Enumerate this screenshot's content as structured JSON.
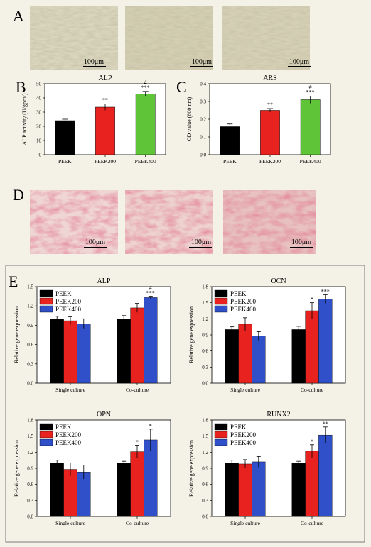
{
  "panel_labels": [
    "A",
    "B",
    "C",
    "D",
    "E"
  ],
  "scale_bar_label": "100μm",
  "chart_data": [
    {
      "id": "B",
      "type": "bar",
      "title": "ALP",
      "ylabel": "ALP activity (U/gprot)",
      "categories": [
        "PEEK",
        "PEEK200",
        "PEEK400"
      ],
      "values": [
        24,
        33.5,
        42.8
      ],
      "errors": [
        1.0,
        2.2,
        1.8
      ],
      "colors": [
        "#000000",
        "#e8231f",
        "#5fc437"
      ],
      "annotations": [
        "",
        "**",
        "#\n***"
      ],
      "ylim": [
        0,
        50
      ],
      "yticks": [
        "0",
        "10",
        "20",
        "30",
        "40",
        "50"
      ]
    },
    {
      "id": "C",
      "type": "bar",
      "title": "ARS",
      "ylabel": "OD value (600 nm)",
      "categories": [
        "PEEK",
        "PEEK200",
        "PEEK400"
      ],
      "values": [
        0.158,
        0.25,
        0.31
      ],
      "errors": [
        0.015,
        0.01,
        0.02
      ],
      "colors": [
        "#000000",
        "#e8231f",
        "#5fc437"
      ],
      "annotations": [
        "",
        "**",
        "#\n***"
      ],
      "ylim": [
        0,
        0.4
      ],
      "yticks": [
        "0.0",
        "0.1",
        "0.2",
        "0.3",
        "0.4"
      ]
    },
    {
      "id": "E1",
      "type": "bar",
      "title": "ALP",
      "ylabel": "Relative gene expression",
      "categories": [
        "Single culture",
        "Co-culture"
      ],
      "series": [
        {
          "name": "PEEK",
          "values": [
            1.0,
            1.0
          ],
          "errors": [
            0.04,
            0.05
          ],
          "color": "#000000"
        },
        {
          "name": "PEEK200",
          "values": [
            0.97,
            1.17
          ],
          "errors": [
            0.06,
            0.07
          ],
          "color": "#e8231f"
        },
        {
          "name": "PEEK400",
          "values": [
            0.92,
            1.33
          ],
          "errors": [
            0.08,
            0.02
          ],
          "color": "#2f50c8"
        }
      ],
      "annotations": [
        [
          "",
          "",
          ""
        ],
        [
          "",
          "",
          "#\n***"
        ]
      ],
      "ylim": [
        0.0,
        1.5
      ],
      "yticks": [
        "0.0",
        "0.3",
        "0.6",
        "0.9",
        "1.2",
        "1.5"
      ],
      "legend": "top-left"
    },
    {
      "id": "E2",
      "type": "bar",
      "title": "OCN",
      "ylabel": "Relative gene expression",
      "categories": [
        "Single culture",
        "Co-culture"
      ],
      "series": [
        {
          "name": "PEEK",
          "values": [
            1.0,
            1.0
          ],
          "errors": [
            0.05,
            0.06
          ],
          "color": "#000000"
        },
        {
          "name": "PEEK200",
          "values": [
            1.1,
            1.35
          ],
          "errors": [
            0.12,
            0.15
          ],
          "color": "#e8231f"
        },
        {
          "name": "PEEK400",
          "values": [
            0.88,
            1.57
          ],
          "errors": [
            0.08,
            0.08
          ],
          "color": "#2f50c8"
        }
      ],
      "annotations": [
        [
          "",
          "",
          ""
        ],
        [
          "",
          "*",
          "***"
        ]
      ],
      "ylim": [
        0.0,
        1.8
      ],
      "yticks": [
        "0.0",
        "0.3",
        "0.6",
        "0.9",
        "1.2",
        "1.5",
        "1.8"
      ],
      "legend": "top-left"
    },
    {
      "id": "E3",
      "type": "bar",
      "title": "OPN",
      "ylabel": "Relative gene expression",
      "categories": [
        "Single culture",
        "Co-culture"
      ],
      "series": [
        {
          "name": "PEEK",
          "values": [
            1.0,
            1.0
          ],
          "errors": [
            0.05,
            0.03
          ],
          "color": "#000000"
        },
        {
          "name": "PEEK200",
          "values": [
            0.88,
            1.21
          ],
          "errors": [
            0.12,
            0.12
          ],
          "color": "#e8231f"
        },
        {
          "name": "PEEK400",
          "values": [
            0.83,
            1.43
          ],
          "errors": [
            0.13,
            0.2
          ],
          "color": "#2f50c8"
        }
      ],
      "annotations": [
        [
          "",
          "",
          ""
        ],
        [
          "",
          "*",
          "*"
        ]
      ],
      "ylim": [
        0.0,
        1.8
      ],
      "yticks": [
        "0.0",
        "0.3",
        "0.6",
        "0.9",
        "1.2",
        "1.5",
        "1.8"
      ],
      "legend": "top-left"
    },
    {
      "id": "E4",
      "type": "bar",
      "title": "RUNX2",
      "ylabel": "Relative gene expression",
      "categories": [
        "Single culture",
        "Co-culture"
      ],
      "series": [
        {
          "name": "PEEK",
          "values": [
            1.0,
            1.0
          ],
          "errors": [
            0.05,
            0.03
          ],
          "color": "#000000"
        },
        {
          "name": "PEEK200",
          "values": [
            0.98,
            1.22
          ],
          "errors": [
            0.08,
            0.12
          ],
          "color": "#e8231f"
        },
        {
          "name": "PEEK400",
          "values": [
            1.02,
            1.52
          ],
          "errors": [
            0.1,
            0.15
          ],
          "color": "#2f50c8"
        }
      ],
      "annotations": [
        [
          "",
          "",
          ""
        ],
        [
          "",
          "*",
          "**"
        ]
      ],
      "ylim": [
        0.0,
        1.8
      ],
      "yticks": [
        "0.0",
        "0.3",
        "0.6",
        "0.9",
        "1.2",
        "1.5",
        "1.8"
      ],
      "legend": "top-left"
    }
  ]
}
